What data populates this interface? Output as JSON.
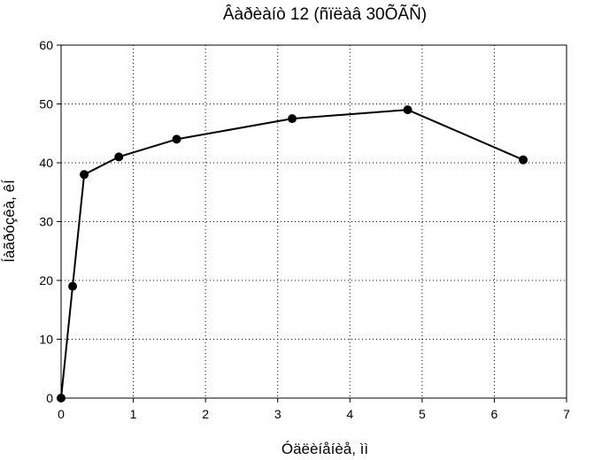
{
  "chart_data": {
    "type": "line",
    "title": "Âàðèàíò 12 (ñïëàâ 30ÕÃÑ)",
    "xlabel": "Óäëèíåíèå, ìì",
    "ylabel": "Íàãðóçêà, êÍ",
    "xlim": [
      0,
      7
    ],
    "ylim": [
      0,
      60
    ],
    "xticks": [
      0,
      1,
      2,
      3,
      4,
      5,
      6,
      7
    ],
    "yticks": [
      0,
      10,
      20,
      30,
      40,
      50,
      60
    ],
    "grid": true,
    "line_color": "#000000",
    "x": [
      0,
      0.16,
      0.32,
      0.8,
      1.6,
      3.2,
      4.8,
      6.4
    ],
    "y": [
      0,
      19,
      38,
      41,
      44,
      47.5,
      49,
      40.5
    ]
  }
}
